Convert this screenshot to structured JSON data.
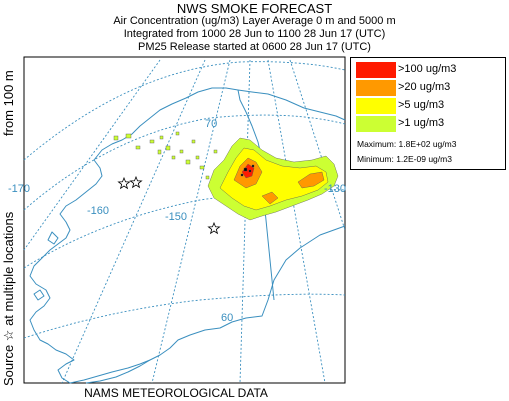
{
  "header": {
    "title": "NWS SMOKE FORECAST",
    "line1": "Air Concentration (ug/m3) Layer Average    0 m and  5000 m",
    "line2": "Integrated from 1000 28 Jun to 1100 28 Jun 17 (UTC)",
    "line3": "PM25 Release started at 0600 28 Jun 17 (UTC)"
  },
  "side_labels": {
    "upper": "from   100 m",
    "lower": "Source ☆ at multiple locations"
  },
  "footer": "NAMS METEOROLOGICAL DATA",
  "legend": {
    "items": [
      {
        "label": ">100 ug/m3",
        "color": "#ff1a00"
      },
      {
        "label": ">20 ug/m3",
        "color": "#ff9900"
      },
      {
        "label": ">5 ug/m3",
        "color": "#ffff00"
      },
      {
        "label": ">1 ug/m3",
        "color": "#ccff33"
      }
    ],
    "maximum": "Maximum:  1.8E+02 ug/m3",
    "minimum": "Minimum:  1.2E-09 ug/m3"
  },
  "map": {
    "graticule_labels": {
      "lat_70": "70",
      "lat_60": "60",
      "lon_170": "-170",
      "lon_160": "-160",
      "lon_150": "-150",
      "lon_130": "-130"
    },
    "source_marker": "source-star",
    "line_color": "#3a8fbf"
  }
}
